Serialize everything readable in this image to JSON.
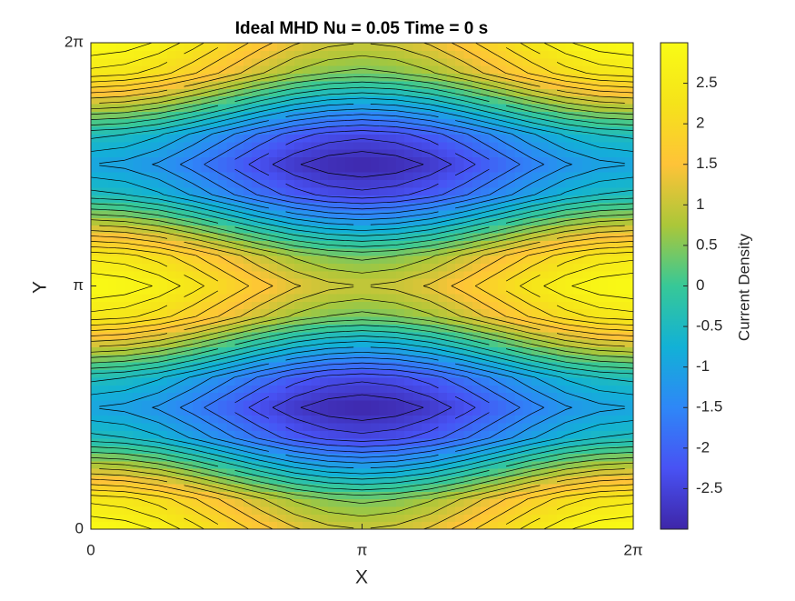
{
  "chart_data": {
    "type": "contour",
    "title": "Ideal MHD Nu = 0.05 Time = 0 s",
    "x_label": "X",
    "y_label": "Y",
    "colorbar_label": "Current Density",
    "colormap": "parula",
    "x": [
      0,
      0.3927,
      0.7854,
      1.1781,
      1.5708,
      1.9635,
      2.3562,
      2.7489,
      3.1416,
      3.5343,
      3.927,
      4.3197,
      4.7124,
      5.1051,
      5.4978,
      5.8905,
      6.2832
    ],
    "y": [
      0,
      0.3927,
      0.7854,
      1.1781,
      1.5708,
      1.9635,
      2.3562,
      2.7489,
      3.1416,
      3.5343,
      3.927,
      4.3197,
      4.7124,
      5.1051,
      5.4978,
      5.8905,
      6.2832
    ],
    "z": [
      [
        3,
        2.92,
        2.71,
        2.38,
        2,
        1.62,
        1.29,
        1.08,
        1,
        1.08,
        1.29,
        1.62,
        2,
        2.38,
        2.71,
        2.92,
        3
      ],
      [
        2.41,
        2.33,
        2.12,
        1.79,
        1.41,
        1.03,
        0.7,
        0.49,
        0.41,
        0.49,
        0.7,
        1.03,
        1.41,
        1.79,
        2.12,
        2.33,
        2.41
      ],
      [
        1,
        0.92,
        0.71,
        0.38,
        0,
        -0.38,
        -0.71,
        -0.92,
        -1,
        -0.92,
        -0.71,
        -0.38,
        0,
        0.38,
        0.71,
        0.92,
        1
      ],
      [
        -0.41,
        -0.49,
        -0.7,
        -1.03,
        -1.41,
        -1.79,
        -2.12,
        -2.33,
        -2.41,
        -2.33,
        -2.12,
        -1.79,
        -1.41,
        -1.03,
        -0.7,
        -0.49,
        -0.41
      ],
      [
        -1,
        -1.08,
        -1.29,
        -1.62,
        -2,
        -2.38,
        -2.71,
        -2.92,
        -3,
        -2.92,
        -2.71,
        -2.38,
        -2,
        -1.62,
        -1.29,
        -1.08,
        -1
      ],
      [
        -0.41,
        -0.49,
        -0.7,
        -1.03,
        -1.41,
        -1.79,
        -2.12,
        -2.33,
        -2.41,
        -2.33,
        -2.12,
        -1.79,
        -1.41,
        -1.03,
        -0.7,
        -0.49,
        -0.41
      ],
      [
        1,
        0.92,
        0.71,
        0.38,
        0,
        -0.38,
        -0.71,
        -0.92,
        -1,
        -0.92,
        -0.71,
        -0.38,
        0,
        0.38,
        0.71,
        0.92,
        1
      ],
      [
        2.41,
        2.33,
        2.12,
        1.79,
        1.41,
        1.03,
        0.7,
        0.49,
        0.41,
        0.49,
        0.7,
        1.03,
        1.41,
        1.79,
        2.12,
        2.33,
        2.41
      ],
      [
        3,
        2.92,
        2.71,
        2.38,
        2,
        1.62,
        1.29,
        1.08,
        1,
        1.08,
        1.29,
        1.62,
        2,
        2.38,
        2.71,
        2.92,
        3
      ],
      [
        2.41,
        2.33,
        2.12,
        1.79,
        1.41,
        1.03,
        0.7,
        0.49,
        0.41,
        0.49,
        0.7,
        1.03,
        1.41,
        1.79,
        2.12,
        2.33,
        2.41
      ],
      [
        1,
        0.92,
        0.71,
        0.38,
        0,
        -0.38,
        -0.71,
        -0.92,
        -1,
        -0.92,
        -0.71,
        -0.38,
        0,
        0.38,
        0.71,
        0.92,
        1
      ],
      [
        -0.41,
        -0.49,
        -0.7,
        -1.03,
        -1.41,
        -1.79,
        -2.12,
        -2.33,
        -2.41,
        -2.33,
        -2.12,
        -1.79,
        -1.41,
        -1.03,
        -0.7,
        -0.49,
        -0.41
      ],
      [
        -1,
        -1.08,
        -1.29,
        -1.62,
        -2,
        -2.38,
        -2.71,
        -2.92,
        -3,
        -2.92,
        -2.71,
        -2.38,
        -2,
        -1.62,
        -1.29,
        -1.08,
        -1
      ],
      [
        -0.41,
        -0.49,
        -0.7,
        -1.03,
        -1.41,
        -1.79,
        -2.12,
        -2.33,
        -2.41,
        -2.33,
        -2.12,
        -1.79,
        -1.41,
        -1.03,
        -0.7,
        -0.49,
        -0.41
      ],
      [
        1,
        0.92,
        0.71,
        0.38,
        0,
        -0.38,
        -0.71,
        -0.92,
        -1,
        -0.92,
        -0.71,
        -0.38,
        0,
        0.38,
        0.71,
        0.92,
        1
      ],
      [
        2.41,
        2.33,
        2.12,
        1.79,
        1.41,
        1.03,
        0.7,
        0.49,
        0.41,
        0.49,
        0.7,
        1.03,
        1.41,
        1.79,
        2.12,
        2.33,
        2.41
      ],
      [
        3,
        2.92,
        2.71,
        2.38,
        2,
        1.62,
        1.29,
        1.08,
        1,
        1.08,
        1.29,
        1.62,
        2,
        2.38,
        2.71,
        2.92,
        3
      ]
    ],
    "xlim": [
      0,
      6.28319
    ],
    "ylim": [
      0,
      6.28319
    ],
    "xticks": [
      0,
      {
        "value": 3.14159,
        "label": "π"
      },
      {
        "value": 6.28319,
        "label": "2π"
      }
    ],
    "yticks": [
      0,
      {
        "value": 3.14159,
        "label": "π"
      },
      {
        "value": 6.28319,
        "label": "2π"
      }
    ],
    "clim": [
      -3,
      3
    ],
    "cticks": [
      -2.5,
      -2,
      -1.5,
      -1,
      -0.5,
      0,
      0.5,
      1,
      1.5,
      2,
      2.5
    ]
  }
}
